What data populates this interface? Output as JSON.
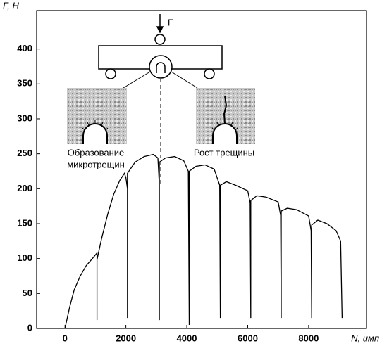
{
  "chart_data": {
    "type": "line",
    "y_label": "F, Н",
    "x_label": "N, имп",
    "x": [
      0,
      150,
      300,
      500,
      700,
      900,
      1050,
      1050,
      1050,
      1200,
      1400,
      1600,
      1800,
      1950,
      2000,
      2050,
      2050,
      2050,
      2300,
      2600,
      2900,
      3050,
      3100,
      3100,
      3100,
      3300,
      3600,
      3900,
      4050,
      4080,
      4080,
      4300,
      4600,
      4900,
      5080,
      5100,
      5100,
      5300,
      5600,
      6000,
      6080,
      6100,
      6100,
      6300,
      6600,
      7000,
      7080,
      7100,
      7100,
      7300,
      7600,
      8000,
      8080,
      8100,
      8100,
      8300,
      8600,
      8900,
      9050,
      9100
    ],
    "values": [
      0,
      30,
      55,
      75,
      90,
      100,
      108,
      12,
      98,
      128,
      163,
      192,
      212,
      222,
      216,
      200,
      15,
      222,
      238,
      246,
      249,
      244,
      205,
      12,
      238,
      244,
      246,
      240,
      225,
      5,
      225,
      232,
      234,
      228,
      205,
      15,
      205,
      210,
      205,
      197,
      180,
      15,
      183,
      190,
      188,
      181,
      162,
      15,
      168,
      172,
      170,
      161,
      140,
      15,
      148,
      155,
      150,
      140,
      125,
      15
    ],
    "color": "#000000",
    "xlim": [
      -930,
      9900
    ],
    "ylim": [
      0,
      455
    ],
    "xticks": [
      0,
      2000,
      4000,
      6000,
      8000
    ],
    "yticks": [
      0,
      50,
      100,
      150,
      200,
      250,
      300,
      350,
      400
    ],
    "annotations": {
      "force": "F",
      "left": [
        "Образование",
        "микротрещин"
      ],
      "right": [
        "Рост трещины"
      ]
    }
  }
}
